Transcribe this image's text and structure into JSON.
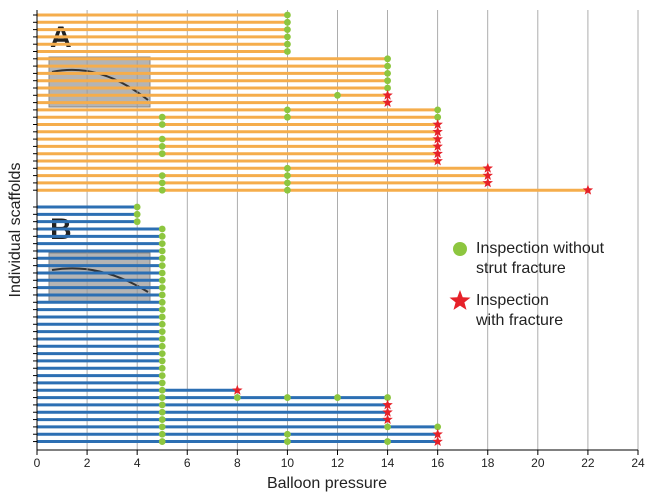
{
  "chart_data": {
    "type": "scaffold",
    "x_label": "Balloon pressure",
    "y_label": "Individual scaffolds",
    "xlim": [
      0,
      24
    ],
    "xticks": [
      0,
      2,
      4,
      6,
      8,
      10,
      12,
      14,
      16,
      18,
      20,
      22,
      24
    ],
    "grid": true,
    "ok_color": "#8dc63f",
    "fracture_color": "#e62129",
    "legend": {
      "ok": [
        "Inspection without",
        "strut fracture"
      ],
      "fracture": [
        "Inspection",
        "with fracture"
      ]
    },
    "groups": [
      {
        "name": "A",
        "color": "#f5ad4c",
        "rows": [
          {
            "end": 10,
            "ok": [
              10
            ],
            "fracture": []
          },
          {
            "end": 10,
            "ok": [
              10
            ],
            "fracture": []
          },
          {
            "end": 10,
            "ok": [
              10
            ],
            "fracture": []
          },
          {
            "end": 10,
            "ok": [
              10
            ],
            "fracture": []
          },
          {
            "end": 10,
            "ok": [
              10
            ],
            "fracture": []
          },
          {
            "end": 10,
            "ok": [
              10
            ],
            "fracture": []
          },
          {
            "end": 14,
            "ok": [
              14
            ],
            "fracture": []
          },
          {
            "end": 14,
            "ok": [
              14
            ],
            "fracture": []
          },
          {
            "end": 14,
            "ok": [
              14
            ],
            "fracture": []
          },
          {
            "end": 14,
            "ok": [
              14
            ],
            "fracture": []
          },
          {
            "end": 14,
            "ok": [
              14
            ],
            "fracture": []
          },
          {
            "end": 14,
            "ok": [
              12
            ],
            "fracture": [
              14
            ]
          },
          {
            "end": 14,
            "ok": [],
            "fracture": [
              14
            ]
          },
          {
            "end": 16,
            "ok": [
              10,
              16
            ],
            "fracture": []
          },
          {
            "end": 16,
            "ok": [
              5,
              10,
              16
            ],
            "fracture": []
          },
          {
            "end": 16,
            "ok": [
              5
            ],
            "fracture": [
              16
            ]
          },
          {
            "end": 16,
            "ok": [],
            "fracture": [
              16
            ]
          },
          {
            "end": 16,
            "ok": [
              5
            ],
            "fracture": [
              16
            ]
          },
          {
            "end": 16,
            "ok": [
              5
            ],
            "fracture": [
              16
            ]
          },
          {
            "end": 16,
            "ok": [
              5
            ],
            "fracture": [
              16
            ]
          },
          {
            "end": 16,
            "ok": [],
            "fracture": [
              16
            ]
          },
          {
            "end": 18,
            "ok": [
              10
            ],
            "fracture": [
              18
            ]
          },
          {
            "end": 18,
            "ok": [
              5,
              10
            ],
            "fracture": [
              18
            ]
          },
          {
            "end": 18,
            "ok": [
              5,
              10
            ],
            "fracture": [
              18
            ]
          },
          {
            "end": 22,
            "ok": [
              5,
              10
            ],
            "fracture": [
              22
            ]
          }
        ]
      },
      {
        "name": "B",
        "color": "#2c6fb3",
        "rows": [
          {
            "end": 4,
            "ok": [
              4
            ],
            "fracture": []
          },
          {
            "end": 4,
            "ok": [
              4
            ],
            "fracture": []
          },
          {
            "end": 4,
            "ok": [
              4
            ],
            "fracture": []
          },
          {
            "end": 5,
            "ok": [
              5
            ],
            "fracture": []
          },
          {
            "end": 5,
            "ok": [
              5
            ],
            "fracture": []
          },
          {
            "end": 5,
            "ok": [
              5
            ],
            "fracture": []
          },
          {
            "end": 5,
            "ok": [
              5
            ],
            "fracture": []
          },
          {
            "end": 5,
            "ok": [
              5
            ],
            "fracture": []
          },
          {
            "end": 5,
            "ok": [
              5
            ],
            "fracture": []
          },
          {
            "end": 5,
            "ok": [
              5
            ],
            "fracture": []
          },
          {
            "end": 5,
            "ok": [
              5
            ],
            "fracture": []
          },
          {
            "end": 5,
            "ok": [
              5
            ],
            "fracture": []
          },
          {
            "end": 5,
            "ok": [
              5
            ],
            "fracture": []
          },
          {
            "end": 5,
            "ok": [
              5
            ],
            "fracture": []
          },
          {
            "end": 5,
            "ok": [
              5
            ],
            "fracture": []
          },
          {
            "end": 5,
            "ok": [
              5
            ],
            "fracture": []
          },
          {
            "end": 5,
            "ok": [
              5
            ],
            "fracture": []
          },
          {
            "end": 5,
            "ok": [
              5
            ],
            "fracture": []
          },
          {
            "end": 5,
            "ok": [
              5
            ],
            "fracture": []
          },
          {
            "end": 5,
            "ok": [
              5
            ],
            "fracture": []
          },
          {
            "end": 5,
            "ok": [
              5
            ],
            "fracture": []
          },
          {
            "end": 5,
            "ok": [
              5
            ],
            "fracture": []
          },
          {
            "end": 5,
            "ok": [
              5
            ],
            "fracture": []
          },
          {
            "end": 5,
            "ok": [
              5
            ],
            "fracture": []
          },
          {
            "end": 5,
            "ok": [
              5
            ],
            "fracture": []
          },
          {
            "end": 8,
            "ok": [
              5
            ],
            "fracture": [
              8
            ]
          },
          {
            "end": 14,
            "ok": [
              5,
              8,
              10,
              12,
              14
            ],
            "fracture": []
          },
          {
            "end": 14,
            "ok": [
              5
            ],
            "fracture": [
              14
            ]
          },
          {
            "end": 14,
            "ok": [
              5
            ],
            "fracture": [
              14
            ]
          },
          {
            "end": 14,
            "ok": [
              5
            ],
            "fracture": [
              14
            ]
          },
          {
            "end": 16,
            "ok": [
              5,
              14,
              16
            ],
            "fracture": []
          },
          {
            "end": 16,
            "ok": [
              5,
              10
            ],
            "fracture": [
              16
            ]
          },
          {
            "end": 16,
            "ok": [
              5,
              10,
              14
            ],
            "fracture": [
              16
            ]
          }
        ]
      }
    ]
  }
}
